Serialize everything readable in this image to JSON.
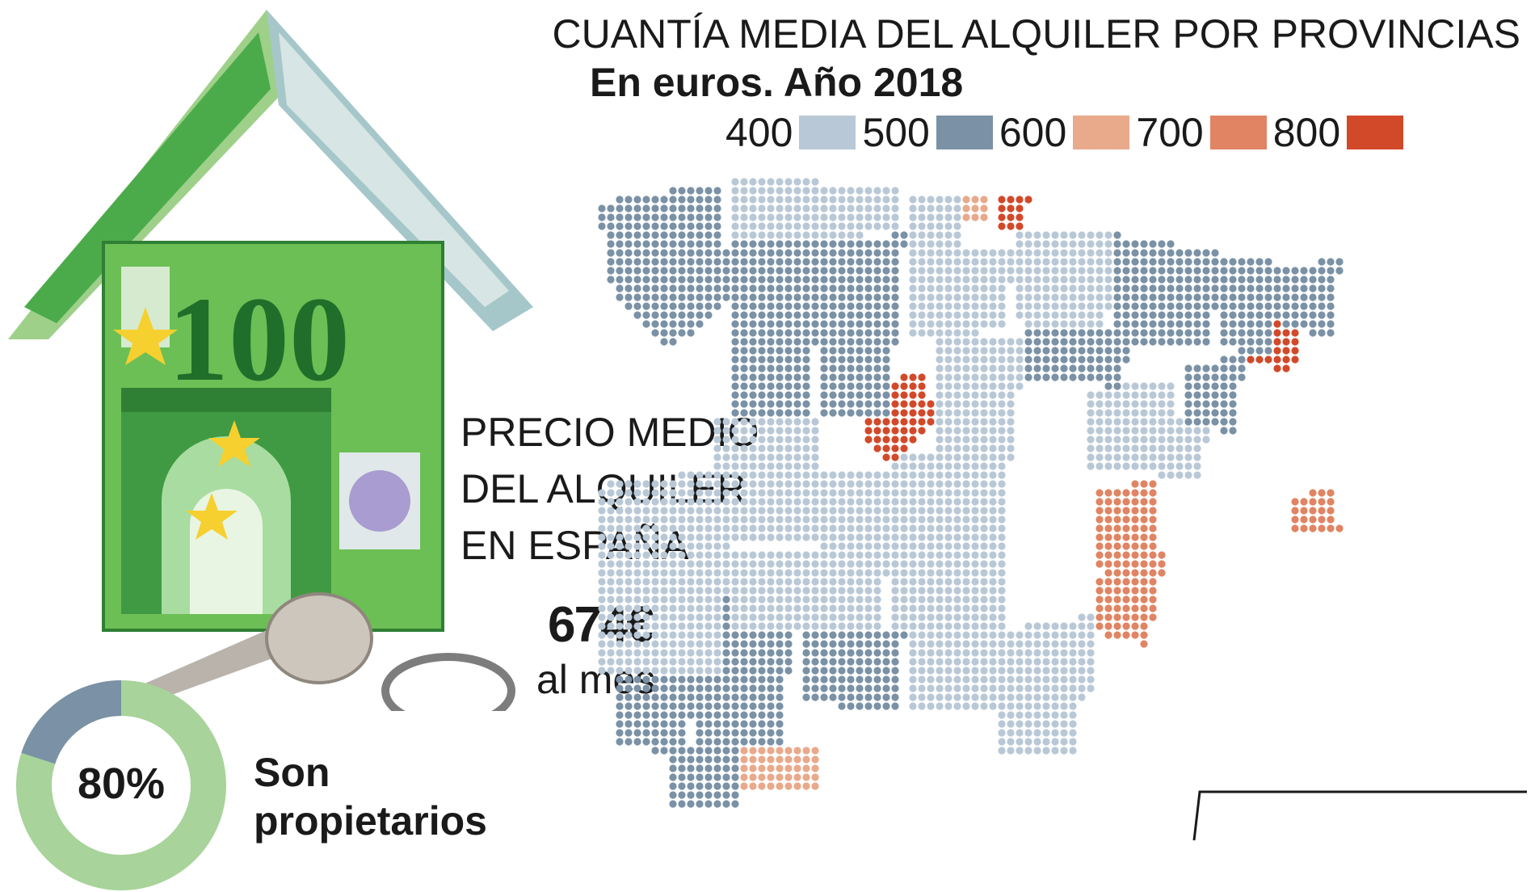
{
  "map": {
    "title": "CUANTÍA MEDIA DEL ALQUILER POR PROVINCIAS",
    "subtitle": "En euros. Año 2018",
    "legend": {
      "labels": [
        "400",
        "500",
        "600",
        "700",
        "800"
      ],
      "bins": [
        {
          "from": "400",
          "to": "500",
          "color": "#b9c8d6"
        },
        {
          "from": "500",
          "to": "600",
          "color": "#7a91a6"
        },
        {
          "from": "600",
          "to": "700",
          "color": "#e9a98b"
        },
        {
          "from": "700",
          "to": "800",
          "color": "#e08463"
        },
        {
          "from": "800",
          "to": "",
          "color": "#d2492a"
        }
      ]
    },
    "base_color": "#cfd6dd"
  },
  "headline": {
    "lines": [
      "PRECIO MEDIO",
      "DEL ALQUILER",
      "EN ESPAÑA"
    ]
  },
  "price": {
    "value": "674€",
    "unit": "al mes"
  },
  "ownership": {
    "percent": 80,
    "label": "80%",
    "caption_lines": [
      "Son",
      "propietarios"
    ],
    "colors": {
      "owners": "#a8d39a",
      "others": "#7a91a6"
    }
  },
  "illustration": {
    "icons": [
      "euro-house-icon",
      "key-icon"
    ]
  }
}
